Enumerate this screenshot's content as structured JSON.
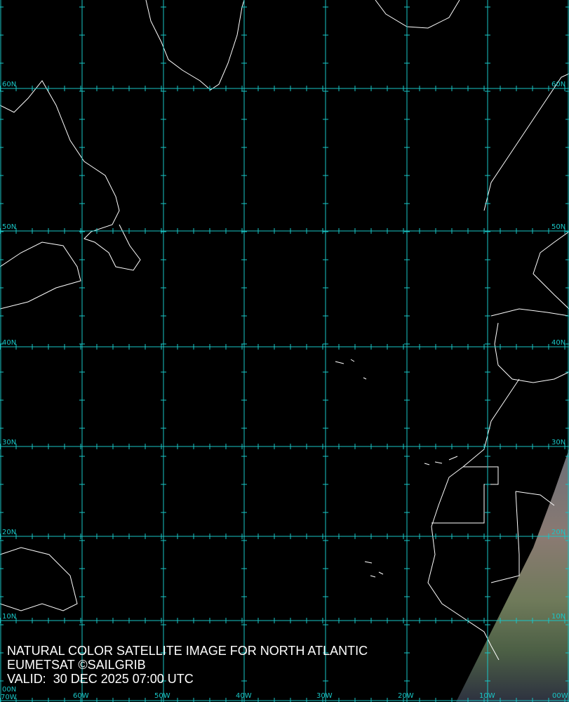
{
  "caption": {
    "title": "NATURAL COLOR SATELLITE IMAGE FOR NORTH ATLANTIC",
    "credit": "EUMETSAT ©SAILGRIB",
    "valid": "VALID:  30 DEC 2025 07:00 UTC"
  },
  "lat_labels": [
    "60N",
    "50N",
    "40N",
    "30N",
    "20N",
    "10N",
    "00N"
  ],
  "lon_labels": [
    "70W",
    "60W",
    "50W",
    "40W",
    "30W",
    "20W",
    "10W",
    "00W"
  ],
  "colors": {
    "grid": "#19c6c6",
    "coastline": "#ffffff",
    "background": "#000000"
  }
}
